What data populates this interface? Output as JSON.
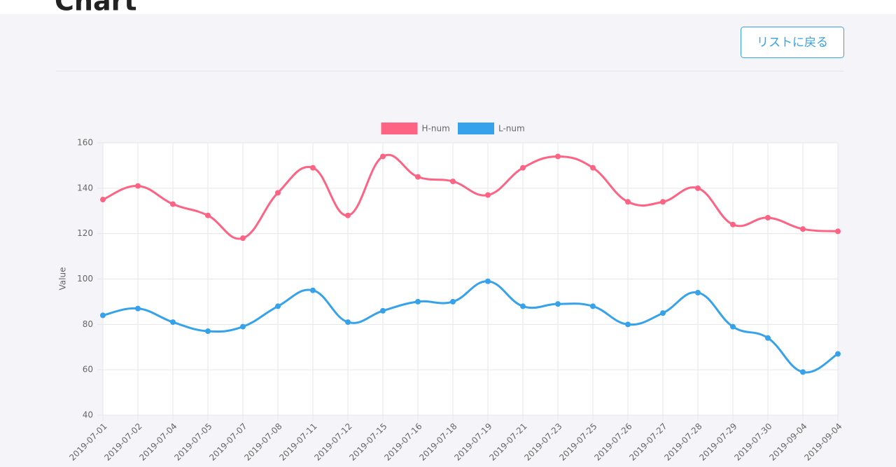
{
  "page": {
    "title": "Chart",
    "button": "リストに戻る"
  },
  "chart_data": {
    "type": "line",
    "y_label": "Value",
    "categories": [
      "2019-07-01",
      "2019-07-02",
      "2019-07-04",
      "2019-07-05",
      "2019-07-07",
      "2019-07-08",
      "2019-07-11",
      "2019-07-12",
      "2019-07-15",
      "2019-07-16",
      "2019-07-18",
      "2019-07-19",
      "2019-07-21",
      "2019-07-23",
      "2019-07-25",
      "2019-07-26",
      "2019-07-27",
      "2019-07-28",
      "2019-07-29",
      "2019-07-30",
      "2019-09-04",
      "2019-09-04"
    ],
    "series": [
      {
        "name": "H-num",
        "color": "#ff6384",
        "values": [
          135,
          141,
          133,
          128,
          118,
          138,
          149,
          128,
          154,
          145,
          143,
          137,
          149,
          154,
          149,
          134,
          134,
          140,
          124,
          127,
          122,
          121
        ]
      },
      {
        "name": "L-num",
        "color": "#36a2eb",
        "values": [
          84,
          87,
          81,
          77,
          79,
          88,
          95,
          81,
          86,
          90,
          90,
          99,
          88,
          89,
          88,
          80,
          85,
          94,
          79,
          74,
          59,
          67
        ]
      }
    ],
    "ylim": [
      40,
      160
    ],
    "yticks": [
      40,
      60,
      80,
      100,
      120,
      140,
      160
    ],
    "grid": true
  }
}
